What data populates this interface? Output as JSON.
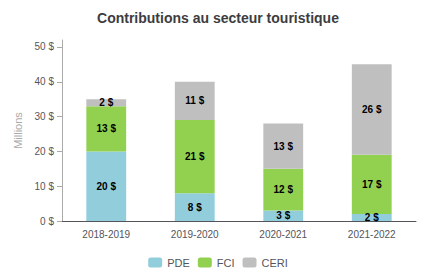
{
  "chart_data": {
    "type": "bar",
    "title": "Contributions au secteur touristique",
    "categories": [
      "2018-2019",
      "2019-2020",
      "2020-2021",
      "2021-2022"
    ],
    "series": [
      {
        "name": "PDE",
        "color": "#92CDDC",
        "values": [
          20,
          8,
          3,
          2
        ],
        "value_labels": [
          "20 $",
          "8 $",
          "3 $",
          "2 $"
        ]
      },
      {
        "name": "FCI",
        "color": "#92D050",
        "values": [
          13,
          21,
          12,
          17
        ],
        "value_labels": [
          "13 $",
          "21 $",
          "12 $",
          "17 $"
        ]
      },
      {
        "name": "CERI",
        "color": "#BFBFBF",
        "values": [
          2,
          11,
          13,
          26
        ],
        "value_labels": [
          "2 $",
          "11 $",
          "13 $",
          "26 $"
        ]
      }
    ],
    "ylabel": "Millions",
    "ylim": [
      0,
      52
    ],
    "yticks": [
      {
        "value": 0,
        "label": "0 $"
      },
      {
        "value": 10,
        "label": "10 $"
      },
      {
        "value": 20,
        "label": "20 $"
      },
      {
        "value": 30,
        "label": "30 $"
      },
      {
        "value": 40,
        "label": "40 $"
      },
      {
        "value": 50,
        "label": "50 $"
      }
    ],
    "stacked": true,
    "data_labels": true,
    "grid": false,
    "legend": "bottom"
  }
}
